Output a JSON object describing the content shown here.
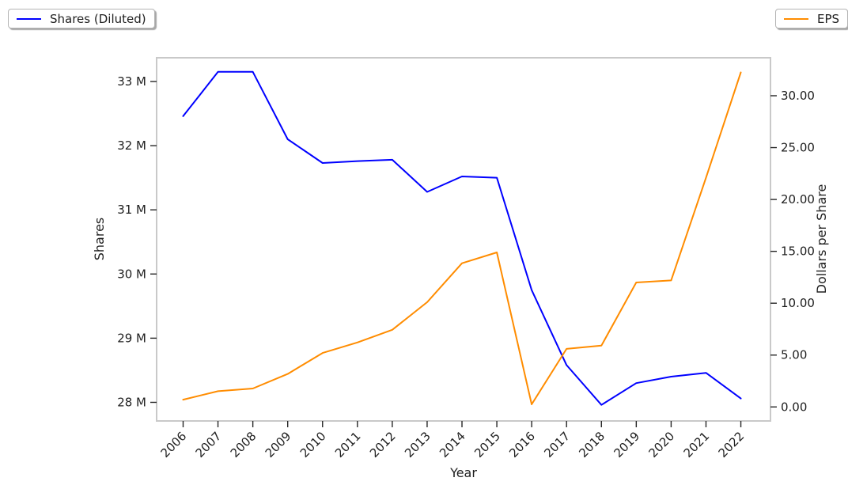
{
  "figure": {
    "background": "#ffffff"
  },
  "legend_left": {
    "label": "Shares (Diluted)",
    "color": "#0000ff"
  },
  "legend_right": {
    "label": "EPS",
    "color": "#ff8c00"
  },
  "chart_data": {
    "type": "line",
    "title": "",
    "xlabel": "Year",
    "x": [
      2006,
      2007,
      2008,
      2009,
      2010,
      2011,
      2012,
      2013,
      2014,
      2015,
      2016,
      2017,
      2018,
      2019,
      2020,
      2021,
      2022
    ],
    "x_tick_labels": [
      "2006",
      "2007",
      "2008",
      "2009",
      "2010",
      "2011",
      "2012",
      "2013",
      "2014",
      "2015",
      "2016",
      "2017",
      "2018",
      "2019",
      "2020",
      "2021",
      "2022"
    ],
    "x_range": [
      2005.24,
      2022.85
    ],
    "x_tick_rotation_deg": 45,
    "grid": false,
    "series": [
      {
        "name": "Shares (Diluted)",
        "axis": "left",
        "color": "#0000ff",
        "unit": "millions of shares",
        "values": [
          32.46,
          33.15,
          33.15,
          32.1,
          31.73,
          31.76,
          31.78,
          31.28,
          31.52,
          31.5,
          29.75,
          28.58,
          27.96,
          28.3,
          28.4,
          28.46,
          28.06
        ]
      },
      {
        "name": "EPS",
        "axis": "right",
        "color": "#ff8c00",
        "unit": "dollars per share",
        "values": [
          0.7,
          1.52,
          1.78,
          3.18,
          5.2,
          6.22,
          7.44,
          10.1,
          13.85,
          14.9,
          0.25,
          5.6,
          5.92,
          12.0,
          12.2,
          22.1,
          32.25
        ]
      }
    ],
    "y_left": {
      "label": "Shares",
      "tick_values": [
        28,
        29,
        30,
        31,
        32,
        33
      ],
      "tick_labels": [
        "28 M",
        "29 M",
        "30 M",
        "31 M",
        "32 M",
        "33 M"
      ],
      "range": [
        27.71,
        33.37
      ]
    },
    "y_right": {
      "label": "Dollars per Share",
      "tick_values": [
        0,
        5,
        10,
        15,
        20,
        25,
        30
      ],
      "tick_labels": [
        "0.00",
        "5.00",
        "10.00",
        "15.00",
        "20.00",
        "25.00",
        "30.00"
      ],
      "range": [
        -1.35,
        33.66
      ]
    },
    "legend_position": "upper-left and upper-right, outside plot"
  }
}
